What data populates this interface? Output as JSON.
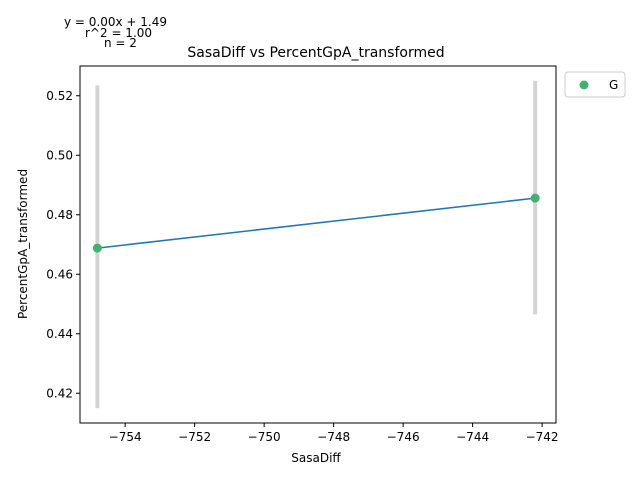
{
  "chart_data": {
    "type": "scatter",
    "title": "SasaDiff vs PercentGpA_transformed",
    "xlabel": "SasaDiff",
    "ylabel": "PercentGpA_transformed",
    "xlim": [
      -755.3,
      -741.6
    ],
    "ylim": [
      0.41,
      0.53
    ],
    "x_ticks": [
      -754,
      -752,
      -750,
      -748,
      -746,
      -744,
      -742
    ],
    "y_ticks": [
      0.42,
      0.44,
      0.46,
      0.48,
      0.5,
      0.52
    ],
    "x_tick_labels": [
      "−754",
      "−752",
      "−750",
      "−748",
      "−746",
      "−744",
      "−742"
    ],
    "y_tick_labels": [
      "0.42",
      "0.44",
      "0.46",
      "0.48",
      "0.50",
      "0.52"
    ],
    "series": [
      {
        "name": "G",
        "color": "#3cb371",
        "points": [
          {
            "x": -754.8,
            "y": 0.4688,
            "err_low": 0.415,
            "err_high": 0.5235
          },
          {
            "x": -742.2,
            "y": 0.4856,
            "err_low": 0.4465,
            "err_high": 0.525
          }
        ]
      }
    ],
    "fit_line": {
      "color": "#1f77b4",
      "x": [
        -754.8,
        -742.2
      ],
      "y": [
        0.4688,
        0.4856
      ]
    },
    "errorbar_color": "#d3d3d3",
    "annotations": [
      "y = 0.00x + 1.49",
      "r^2 = 1.00",
      "n = 2"
    ],
    "legend": {
      "placement": "outside-top-right",
      "entries": [
        "G"
      ]
    },
    "grid": false
  }
}
